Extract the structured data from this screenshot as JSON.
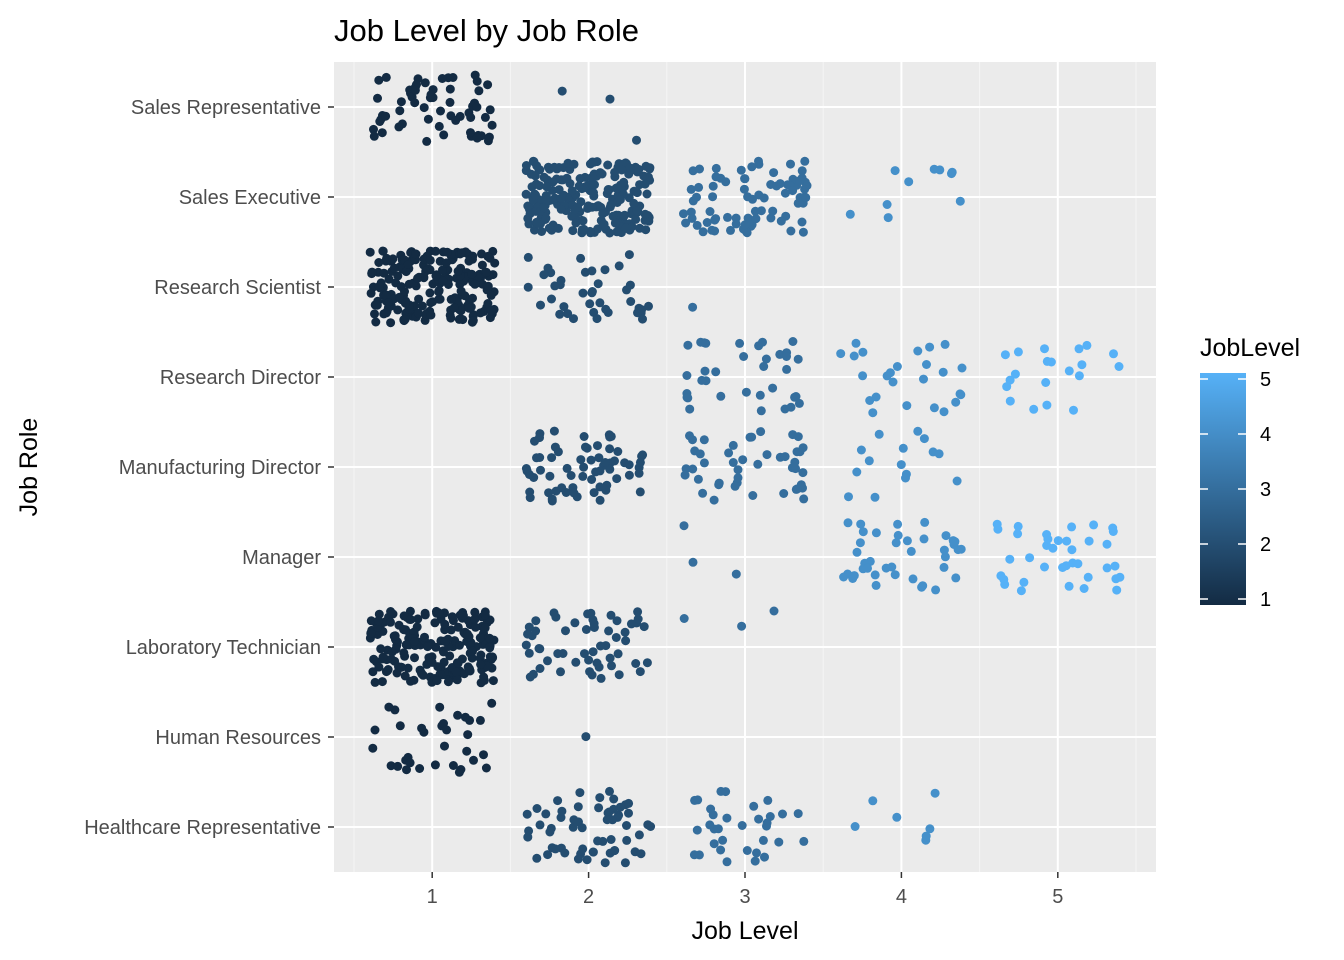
{
  "chart_data": {
    "type": "scatter",
    "jitter": true,
    "title": "Job Level by Job Role",
    "xlabel": "Job Level",
    "ylabel": "Job Role",
    "x_ticks": [
      1,
      2,
      3,
      4,
      5
    ],
    "xlim": [
      0.5,
      5.5
    ],
    "categories": [
      "Healthcare Representative",
      "Human Resources",
      "Laboratory Technician",
      "Manager",
      "Manufacturing Director",
      "Research Director",
      "Research Scientist",
      "Sales Executive",
      "Sales Representative"
    ],
    "counts": [
      {
        "role": "Healthcare Representative",
        "levels": [
          0,
          60,
          33,
          7,
          0
        ]
      },
      {
        "role": "Human Resources",
        "levels": [
          33,
          1,
          0,
          0,
          0
        ]
      },
      {
        "role": "Laboratory Technician",
        "levels": [
          200,
          55,
          3,
          0,
          0
        ]
      },
      {
        "role": "Manager",
        "levels": [
          0,
          0,
          3,
          40,
          37
        ]
      },
      {
        "role": "Manufacturing Director",
        "levels": [
          0,
          65,
          45,
          15,
          0
        ]
      },
      {
        "role": "Research Director",
        "levels": [
          0,
          0,
          35,
          25,
          20
        ]
      },
      {
        "role": "Research Scientist",
        "levels": [
          215,
          40,
          1,
          0,
          0
        ]
      },
      {
        "role": "Sales Executive",
        "levels": [
          0,
          220,
          80,
          10,
          0
        ]
      },
      {
        "role": "Sales Representative",
        "levels": [
          60,
          3,
          0,
          0,
          0
        ]
      }
    ],
    "color_scale": {
      "variable": "JobLevel",
      "low": "#132b43",
      "high": "#56b1f7",
      "ticks": [
        1,
        2,
        3,
        4,
        5
      ]
    },
    "grid": true,
    "legend_position": "right"
  }
}
